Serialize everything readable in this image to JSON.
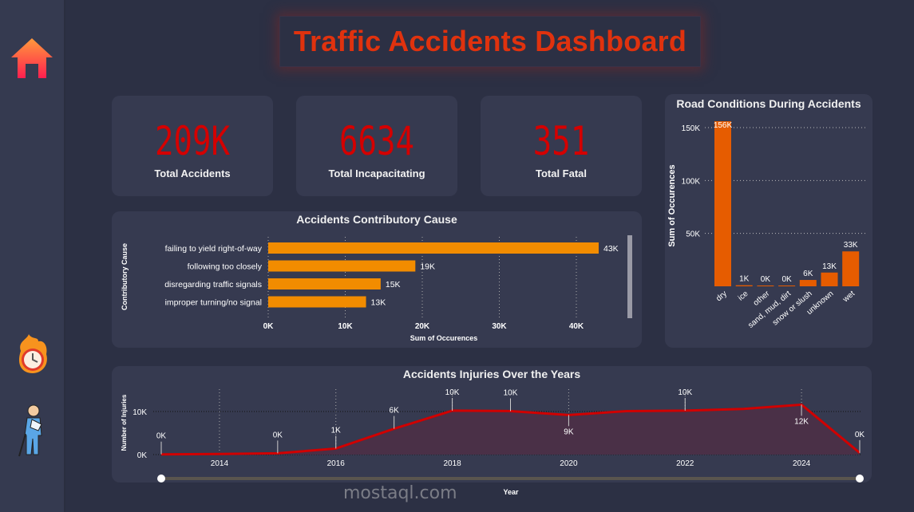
{
  "header": {
    "title": "Traffic Accidents Dashboard"
  },
  "sidebar": {
    "items": [
      {
        "icon": "home-icon"
      },
      {
        "icon": "burning-clock-icon"
      },
      {
        "icon": "injured-person-icon"
      }
    ]
  },
  "kpis": [
    {
      "value": "209K",
      "label": "Total Accidents"
    },
    {
      "value": "6634",
      "label": "Total Incapacitating"
    },
    {
      "value": "351",
      "label": "Total Fatal"
    }
  ],
  "colors": {
    "background": "#2c3044",
    "card": "#363a50",
    "kpi": "#d40000",
    "title": "#e0320e",
    "cause_bar": "#f28c00",
    "road_bar": "#e65c00",
    "line": "#d00000"
  },
  "watermark": "mostaql.com",
  "chart_data": [
    {
      "type": "bar",
      "orientation": "horizontal",
      "title": "Accidents Contributory Cause",
      "xlabel": "Sum of Occurences",
      "ylabel": "Contributory Cause",
      "categories": [
        "failing to yield right-of-way",
        "following too closely",
        "disregarding traffic signals",
        "improper turning/no signal"
      ],
      "values": [
        42900,
        19100,
        14600,
        12700
      ],
      "data_labels": [
        "43K",
        "19K",
        "15K",
        "13K"
      ],
      "xticks": [
        "0K",
        "10K",
        "20K",
        "30K",
        "40K"
      ],
      "xlim": [
        0,
        40000
      ],
      "grid": true
    },
    {
      "type": "bar",
      "title": "Road Conditions During Accidents",
      "xlabel": "",
      "ylabel": "Sum of Occurences",
      "categories": [
        "dry",
        "ice",
        "other",
        "sand, mud, dirt",
        "snow or slush",
        "unknown",
        "wet"
      ],
      "values": [
        156000,
        1000,
        200,
        200,
        6000,
        13000,
        33000
      ],
      "data_labels": [
        "156K",
        "1K",
        "0K",
        "0K",
        "6K",
        "13K",
        "33K"
      ],
      "yticks": [
        "50K",
        "100K",
        "150K"
      ],
      "ylim": [
        0,
        150000
      ],
      "grid": true
    },
    {
      "type": "area",
      "title": "Accidents Injuries Over the Years",
      "xlabel": "Year",
      "ylabel": "Number of Injuries",
      "x": [
        2013,
        2014,
        2015,
        2016,
        2017,
        2018,
        2019,
        2020,
        2021,
        2022,
        2023,
        2024,
        2025
      ],
      "values": [
        50,
        150,
        300,
        1400,
        6000,
        10200,
        10100,
        9200,
        10100,
        10200,
        10600,
        11600,
        400
      ],
      "data_labels": [
        "0K",
        "",
        "0K",
        "1K",
        "6K",
        "10K",
        "10K",
        "9K",
        "",
        "10K",
        "",
        "12K",
        "0K"
      ],
      "xticks": [
        "2014",
        "2016",
        "2018",
        "2020",
        "2022",
        "2024"
      ],
      "yticks": [
        "0K",
        "10K"
      ],
      "ylim": [
        0,
        10000
      ],
      "grid": true
    }
  ]
}
